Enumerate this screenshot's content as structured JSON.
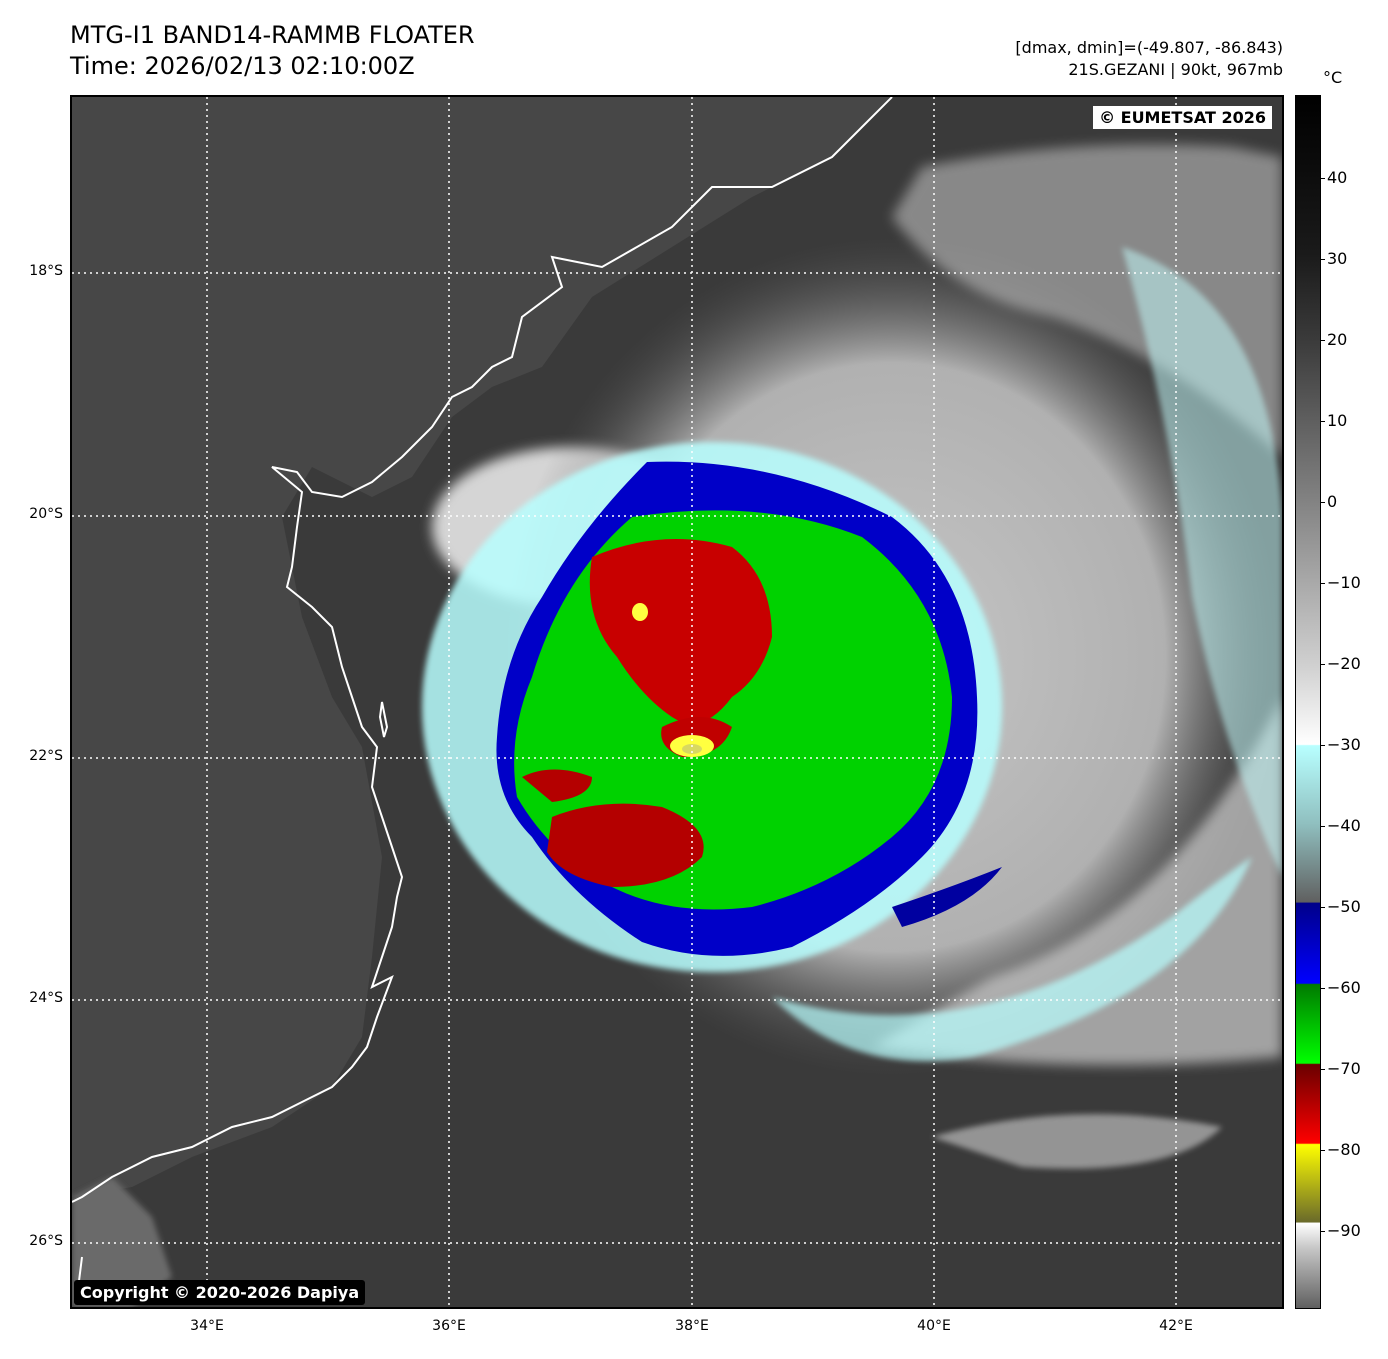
{
  "header": {
    "title_line1": "MTG-I1 BAND14-RAMMB FLOATER",
    "title_line2": "Time: 2026/02/13 02:10:00Z",
    "range_text": "[dmax, dmin]=(-49.807, -86.843)",
    "storm_text": "21S.GEZANI | 90kt, 967mb"
  },
  "map": {
    "copyright_top": "© EUMETSAT 2026",
    "copyright_bottom": "Copyright © 2020-2026 Dapiya",
    "lat_labels": [
      "18°S",
      "20°S",
      "22°S",
      "24°S",
      "26°S"
    ],
    "lon_labels": [
      "34°E",
      "36°E",
      "38°E",
      "40°E",
      "42°E"
    ],
    "storm_center": {
      "lon": 38.0,
      "lat": -21.9
    }
  },
  "colorbar": {
    "unit": "°C",
    "ticks": [
      "40",
      "30",
      "20",
      "10",
      "0",
      "−10",
      "−20",
      "−30",
      "−40",
      "−50",
      "−60",
      "−70",
      "−80",
      "−90"
    ],
    "colors": {
      "black_warm": "#000000",
      "gray": "#808080",
      "white": "#ffffff",
      "cyan": "#b8ffff",
      "blue": "#0000ff",
      "green": "#00c000",
      "red": "#c00000",
      "yellow": "#ffff00"
    }
  }
}
